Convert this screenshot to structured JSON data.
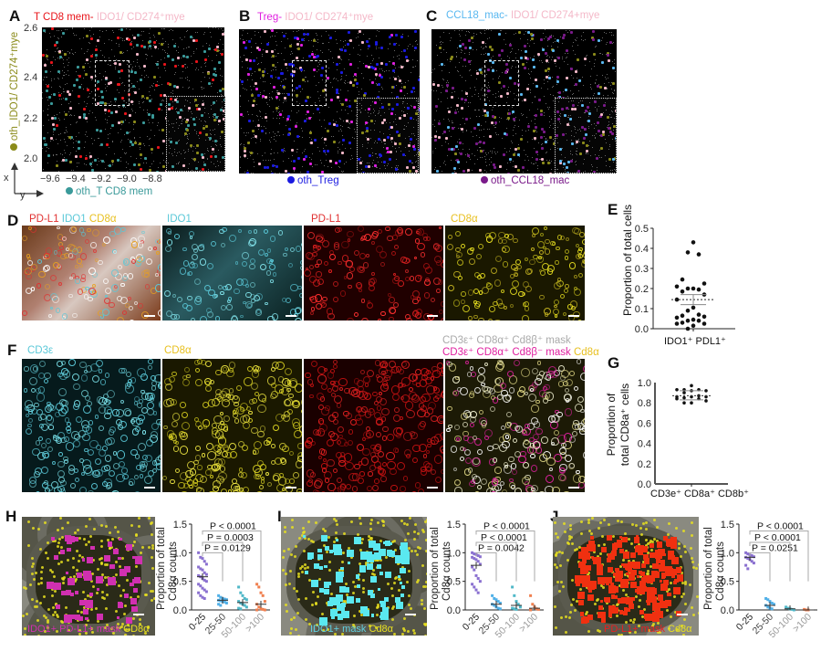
{
  "figure": {
    "panels": {
      "A": {
        "letter": "A",
        "title_parts": [
          {
            "text": "T CD8 mem",
            "color": "#e8141a"
          },
          {
            "text": "- ",
            "color": "#e8141a"
          },
          {
            "text": "IDO1/ CD274⁺mye",
            "color": "#f4b8c8"
          }
        ],
        "ylabel": "oth_IDO1/ CD274⁺mye",
        "ylabel_color": "#8b8b1a",
        "y_ticks": [
          "2.6",
          "2.4",
          "2.2",
          "2.0"
        ],
        "x_ticks": [
          "−9.6",
          "−9.4",
          "−9.2",
          "−9.0",
          "−8.8"
        ],
        "axis_x_label": "x",
        "axis_y_label": "y",
        "legend": "oth_T CD8 mem",
        "legend_color": "#3a9a9a",
        "colors": {
          "focus": "#e8141a",
          "partner": "#f4b8c8",
          "other": "#3a9a9a",
          "mye": "#8b8b1a"
        }
      },
      "B": {
        "letter": "B",
        "title_parts": [
          {
            "text": "Treg",
            "color": "#e020e0"
          },
          {
            "text": "- ",
            "color": "#e020e0"
          },
          {
            "text": "IDO1/ CD274⁺mye",
            "color": "#f4b8c8"
          }
        ],
        "legend": "oth_Treg",
        "legend_color": "#1a1ae0",
        "colors": {
          "focus": "#e020e0",
          "partner": "#f4b8c8",
          "other": "#1a1ae0",
          "mye": "#8b8b1a"
        }
      },
      "C": {
        "letter": "C",
        "title_parts": [
          {
            "text": "CCL18_mac",
            "color": "#5ab8f0"
          },
          {
            "text": "- ",
            "color": "#5ab8f0"
          },
          {
            "text": "IDO1/ CD274+mye",
            "color": "#f4b8c8"
          }
        ],
        "legend": "oth_CCL18_mac",
        "legend_color": "#7a1a8a",
        "colors": {
          "focus": "#5ab8f0",
          "partner": "#f4b8c8",
          "other": "#7a1a8a",
          "mye": "#8b8b1a"
        }
      },
      "D": {
        "letter": "D",
        "merge_title_parts": [
          {
            "text": "PD-L1 ",
            "color": "#e03030"
          },
          {
            "text": "IDO1 ",
            "color": "#5ac8d8"
          },
          {
            "text": "CD8α",
            "color": "#e8c020"
          }
        ],
        "channels": [
          {
            "title": "IDO1",
            "color": "#5ac8d8"
          },
          {
            "title": "PD-L1",
            "color": "#e03030"
          },
          {
            "title": "CD8α",
            "color": "#e8c020"
          }
        ]
      },
      "E": {
        "letter": "E",
        "ylabel": "Proportion of total cells",
        "xlabel": "IDO1⁺ PDL1⁺",
        "y_ticks": [
          "0.5",
          "0.4",
          "0.3",
          "0.2",
          "0.1",
          "0.0"
        ]
      },
      "F": {
        "letter": "F",
        "channels": [
          {
            "title": "CD3ε",
            "color": "#5ac8d8"
          },
          {
            "title": "CD8α",
            "color": "#e8c020"
          },
          {
            "title": "",
            "color": "#e03030"
          }
        ],
        "mask_title_line1": "CD3ε⁺ CD8α⁺ Cd8β⁺ mask",
        "mask_title_line1_color": "#aaaaaa",
        "mask_title_line2_parts": [
          {
            "text": "CD3ε⁺ CD8α⁺ Cd8β⁻ mask ",
            "color": "#e020a0"
          },
          {
            "text": "Cd8α",
            "color": "#e8c020"
          }
        ]
      },
      "G": {
        "letter": "G",
        "ylabel_line1": "Proportion of",
        "ylabel_line2": "total CD8a⁺ cells",
        "xlabel": "CD3e⁺ CD8a⁺ CD8b⁺",
        "y_ticks": [
          "1.0",
          "0.8",
          "0.6",
          "0.4",
          "0.2",
          "0.0"
        ]
      },
      "H": {
        "letter": "H",
        "image_caption_parts": [
          {
            "text": "IDO1+ PD-L1+ mask ",
            "color": "#d030b0"
          },
          {
            "text": "CD8α",
            "color": "#e8e020"
          }
        ],
        "mask_color": "#d030b0"
      },
      "I": {
        "letter": "I",
        "image_caption_parts": [
          {
            "text": "IDO1+ mask ",
            "color": "#60d0e0"
          },
          {
            "text": "Cd8α",
            "color": "#e8e020"
          }
        ],
        "mask_color": "#5ae8f0"
      },
      "J": {
        "letter": "J",
        "image_caption_parts": [
          {
            "text": "PD-L1+ mask ",
            "color": "#e82020"
          },
          {
            "text": "Cd8α",
            "color": "#e8e020"
          }
        ],
        "mask_color": "#f03010"
      }
    }
  },
  "chart_data": [
    {
      "id": "E",
      "type": "scatter",
      "title": "",
      "xlabel": "",
      "ylabel": "Proportion of total cells",
      "categories": [
        "IDO1⁺ PDL1⁺"
      ],
      "ylim": [
        0,
        0.5
      ],
      "values": [
        0.43,
        0.38,
        0.37,
        0.245,
        0.225,
        0.21,
        0.2,
        0.2,
        0.195,
        0.185,
        0.17,
        0.145,
        0.105,
        0.09,
        0.07,
        0.065,
        0.06,
        0.055,
        0.045,
        0.04,
        0.04,
        0.03,
        0.025,
        0.025,
        0.015,
        0.0
      ],
      "mean": 0.145,
      "sem_range": [
        0.12,
        0.17
      ]
    },
    {
      "id": "G",
      "type": "scatter",
      "title": "",
      "ylabel": "Proportion of total CD8a⁺ cells",
      "categories": [
        "CD3e⁺ CD8a⁺ CD8b⁺"
      ],
      "ylim": [
        0,
        1.0
      ],
      "values": [
        0.97,
        0.93,
        0.93,
        0.93,
        0.92,
        0.92,
        0.9,
        0.87,
        0.86,
        0.86,
        0.86,
        0.85,
        0.84,
        0.84,
        0.82,
        0.8,
        0.8
      ],
      "mean": 0.87
    },
    {
      "id": "H",
      "type": "scatter",
      "ylabel": "Proportion of total Cd8α counts",
      "categories": [
        "0-25",
        "25-50",
        "50-100",
        ">100"
      ],
      "category_colors": [
        "#8a70d0",
        "#50b0e8",
        "#50b8c8",
        "#f08050"
      ],
      "ylim": [
        0,
        1.5
      ],
      "y_ticks": [
        "1.5",
        "1.0",
        "0.5",
        "0.0"
      ],
      "series": [
        {
          "name": "0-25",
          "mean": 0.58,
          "values": [
            1.0,
            0.92,
            0.9,
            0.85,
            0.8,
            0.75,
            0.72,
            0.7,
            0.65,
            0.62,
            0.6,
            0.58,
            0.55,
            0.52,
            0.5,
            0.45,
            0.42,
            0.38,
            0.35,
            0.32,
            0.3,
            0.25,
            0.22,
            0.2
          ]
        },
        {
          "name": "25-50",
          "mean": 0.17,
          "values": [
            0.25,
            0.22,
            0.2,
            0.19,
            0.18,
            0.17,
            0.16,
            0.15,
            0.14,
            0.12,
            0.1,
            0.08
          ]
        },
        {
          "name": "50-100",
          "mean": 0.13,
          "values": [
            0.4,
            0.3,
            0.25,
            0.2,
            0.18,
            0.15,
            0.12,
            0.1,
            0.08,
            0.05,
            0.03,
            0.02
          ]
        },
        {
          "name": ">100",
          "mean": 0.1,
          "values": [
            0.45,
            0.4,
            0.3,
            0.25,
            0.15,
            0.1,
            0.05,
            0.02,
            0.01,
            0.0,
            0.0
          ]
        }
      ],
      "annotations": [
        {
          "text": "P = 0.0129",
          "from": "0-25",
          "to": "25-50"
        },
        {
          "text": "P = 0.0003",
          "from": "0-25",
          "to": "50-100"
        },
        {
          "text": "P < 0.0001",
          "from": "0-25",
          "to": ">100"
        }
      ]
    },
    {
      "id": "I",
      "type": "scatter",
      "ylabel": "Proportion of total Cd8α counts",
      "categories": [
        "0-25",
        "25-50",
        "50-100",
        ">100"
      ],
      "category_colors": [
        "#8a70d0",
        "#50b0e8",
        "#50b8c8",
        "#f08050"
      ],
      "ylim": [
        0,
        1.5
      ],
      "y_ticks": [
        "1.5",
        "1.0",
        "0.5",
        "0.0"
      ],
      "series": [
        {
          "name": "0-25",
          "mean": 0.78,
          "values": [
            1.0,
            0.98,
            0.97,
            0.95,
            0.93,
            0.92,
            0.9,
            0.88,
            0.85,
            0.8,
            0.75,
            0.7,
            0.6,
            0.55,
            0.5,
            0.45,
            0.4,
            0.35,
            0.3
          ]
        },
        {
          "name": "25-50",
          "mean": 0.1,
          "values": [
            0.25,
            0.2,
            0.18,
            0.15,
            0.12,
            0.1,
            0.08,
            0.05,
            0.03,
            0.02
          ]
        },
        {
          "name": "50-100",
          "mean": 0.08,
          "values": [
            0.4,
            0.25,
            0.15,
            0.1,
            0.05,
            0.03,
            0.02,
            0.01
          ]
        },
        {
          "name": ">100",
          "mean": 0.03,
          "values": [
            0.25,
            0.1,
            0.05,
            0.02,
            0.01,
            0.0
          ]
        }
      ],
      "annotations": [
        {
          "text": "P = 0.0042",
          "from": "0-25",
          "to": "25-50"
        },
        {
          "text": "P < 0.0001",
          "from": "0-25",
          "to": "50-100"
        },
        {
          "text": "P < 0.0001",
          "from": "0-25",
          "to": ">100"
        }
      ]
    },
    {
      "id": "J",
      "type": "scatter",
      "ylabel": "Proportion of total Cd8α counts",
      "categories": [
        "0-25",
        "25-50",
        "50-100",
        ">100"
      ],
      "category_colors": [
        "#8a70d0",
        "#50b0e8",
        "#50b8c8",
        "#f08050"
      ],
      "ylim": [
        0,
        1.5
      ],
      "y_ticks": [
        "1.5",
        "1.0",
        "0.5",
        "0.0"
      ],
      "series": [
        {
          "name": "0-25",
          "mean": 0.92,
          "values": [
            1.0,
            0.98,
            0.96,
            0.95,
            0.93,
            0.92,
            0.9,
            0.88,
            0.85,
            0.82,
            0.78,
            0.72
          ]
        },
        {
          "name": "25-50",
          "mean": 0.08,
          "values": [
            0.2,
            0.18,
            0.15,
            0.12,
            0.1,
            0.08,
            0.05,
            0.03,
            0.02
          ]
        },
        {
          "name": "50-100",
          "mean": 0.02,
          "values": [
            0.05,
            0.03,
            0.02,
            0.01,
            0.0
          ]
        },
        {
          "name": ">100",
          "mean": 0.0,
          "values": [
            0.01,
            0.0,
            0.0
          ]
        }
      ],
      "annotations": [
        {
          "text": "P = 0.0251",
          "from": "0-25",
          "to": "25-50"
        },
        {
          "text": "P < 0.0001",
          "from": "0-25",
          "to": "50-100"
        },
        {
          "text": "P < 0.0001",
          "from": "0-25",
          "to": ">100"
        }
      ]
    }
  ]
}
